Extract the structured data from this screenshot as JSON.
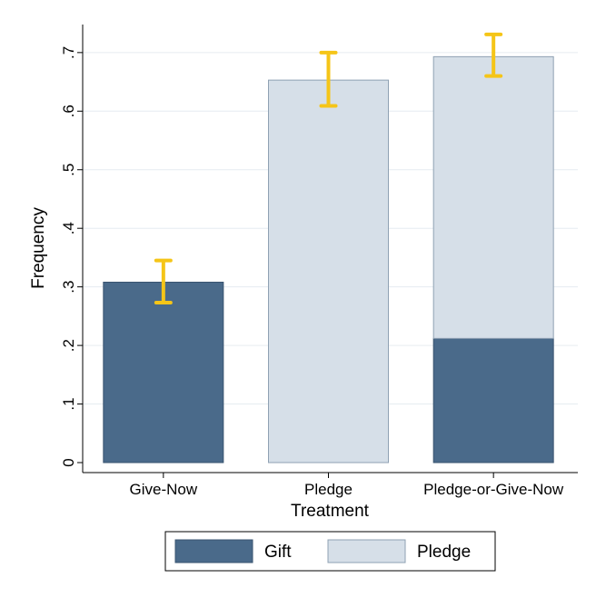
{
  "chart_data": {
    "type": "bar",
    "stacked": true,
    "categories": [
      "Give-Now",
      "Pledge",
      "Pledge-or-Give-Now"
    ],
    "series": [
      {
        "name": "Gift",
        "values": [
          0.308,
          0,
          0.212
        ],
        "color": "#4a6a8a"
      },
      {
        "name": "Pledge",
        "values": [
          0,
          0.653,
          0.481
        ],
        "color": "#d6dfe8"
      }
    ],
    "error_bars": [
      {
        "category": "Give-Now",
        "low": 0.273,
        "high": 0.345
      },
      {
        "category": "Pledge",
        "low": 0.609,
        "high": 0.7
      },
      {
        "category": "Pledge-or-Give-Now",
        "low": 0.66,
        "high": 0.731
      }
    ],
    "error_bar_color": "#f5c518",
    "xlabel": "Treatment",
    "ylabel": "Frequency",
    "ylim": [
      0,
      0.75
    ],
    "yticks": [
      0,
      0.1,
      0.2,
      0.3,
      0.4,
      0.5,
      0.6,
      0.7
    ],
    "ytick_labels": [
      "0",
      ".1",
      ".2",
      ".3",
      ".4",
      ".5",
      ".6",
      ".7"
    ],
    "grid": true,
    "legend_position": "bottom"
  }
}
